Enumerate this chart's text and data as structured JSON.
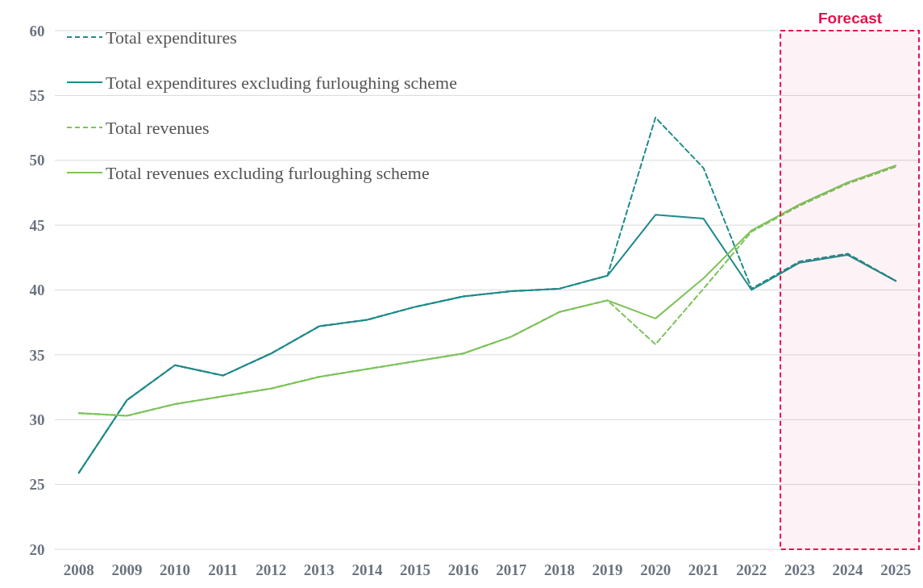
{
  "chart_data": {
    "type": "line",
    "x": [
      2008,
      2009,
      2010,
      2011,
      2012,
      2013,
      2014,
      2015,
      2016,
      2017,
      2018,
      2019,
      2020,
      2021,
      2022,
      2023,
      2024,
      2025
    ],
    "xlim": [
      2007.5,
      2025.5
    ],
    "xticks": [
      2008,
      2009,
      2010,
      2011,
      2012,
      2013,
      2014,
      2015,
      2016,
      2017,
      2018,
      2019,
      2020,
      2021,
      2022,
      2023,
      2024,
      2025
    ],
    "ylim": [
      20,
      60
    ],
    "yticks": [
      20,
      25,
      30,
      35,
      40,
      45,
      50,
      55,
      60
    ],
    "grid": "y",
    "legend": "top left",
    "series": [
      {
        "name": "Total expenditures",
        "color": "#1f8a8a",
        "line_style": "dashed",
        "values": [
          25.9,
          31.5,
          34.2,
          33.4,
          35.1,
          37.2,
          37.7,
          38.7,
          39.5,
          39.9,
          40.1,
          41.1,
          53.3,
          49.4,
          40.1,
          42.2,
          42.8,
          40.7
        ]
      },
      {
        "name": "Total expenditures excluding furloughing scheme",
        "color": "#1f8a8a",
        "line_style": "solid",
        "values": [
          25.9,
          31.5,
          34.2,
          33.4,
          35.1,
          37.2,
          37.7,
          38.7,
          39.5,
          39.9,
          40.1,
          41.1,
          45.8,
          45.5,
          40.0,
          42.1,
          42.7,
          40.7
        ]
      },
      {
        "name": "Total revenues",
        "color": "#7dc35b",
        "line_style": "dashed",
        "values": [
          30.5,
          30.3,
          31.2,
          31.8,
          32.4,
          33.3,
          33.9,
          34.5,
          35.1,
          36.4,
          38.3,
          39.2,
          35.8,
          40.1,
          44.5,
          46.5,
          48.2,
          49.5
        ]
      },
      {
        "name": "Total revenues excluding furloughing scheme",
        "color": "#7dc35b",
        "line_style": "solid",
        "values": [
          30.5,
          30.3,
          31.2,
          31.8,
          32.4,
          33.3,
          33.9,
          34.5,
          35.1,
          36.4,
          38.3,
          39.2,
          37.8,
          40.9,
          44.6,
          46.6,
          48.3,
          49.6
        ]
      }
    ],
    "bands": [
      {
        "axis": "x",
        "from": 2022.6,
        "to": 2025.5,
        "label": "Forecast",
        "color": "#e0144c"
      }
    ]
  }
}
